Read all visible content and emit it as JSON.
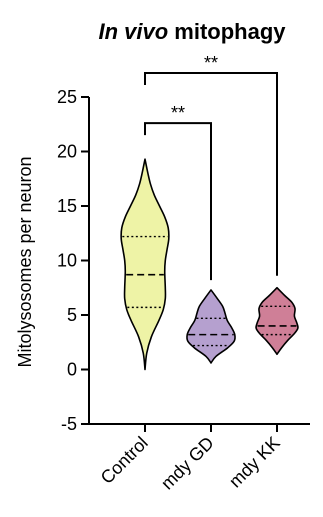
{
  "chart_data": {
    "type": "violin",
    "title_italic": "In vivo",
    "title_rest": " mitophagy",
    "ylabel": "Mitolysosomes per neuron",
    "xlabel": "",
    "ylim": [
      -5,
      25
    ],
    "yticks": [
      -5,
      0,
      5,
      10,
      15,
      20,
      25
    ],
    "categories": [
      "Control",
      "mdy GD",
      "mdy KK"
    ],
    "series": [
      {
        "category": "Control",
        "color": "#eef3a6",
        "min": 0,
        "max": 19.3,
        "q1": 5.7,
        "median": 8.7,
        "q3": 12.2,
        "density": [
          [
            0,
            0.0
          ],
          [
            1.5,
            0.06
          ],
          [
            3,
            0.22
          ],
          [
            4.5,
            0.48
          ],
          [
            5.5,
            0.63
          ],
          [
            6.5,
            0.7
          ],
          [
            7.5,
            0.7
          ],
          [
            9,
            0.68
          ],
          [
            10,
            0.7
          ],
          [
            11,
            0.76
          ],
          [
            12,
            0.82
          ],
          [
            13,
            0.8
          ],
          [
            14,
            0.68
          ],
          [
            15,
            0.5
          ],
          [
            16,
            0.32
          ],
          [
            17,
            0.19
          ],
          [
            18,
            0.1
          ],
          [
            19.3,
            0.0
          ]
        ]
      },
      {
        "category": "mdy GD",
        "color": "#b5a0cf",
        "min": 0.6,
        "max": 7.3,
        "q1": 2.2,
        "median": 3.2,
        "q3": 4.7,
        "density": [
          [
            0.6,
            0.0
          ],
          [
            1.2,
            0.17
          ],
          [
            2,
            0.58
          ],
          [
            2.6,
            0.8
          ],
          [
            3.2,
            0.82
          ],
          [
            3.8,
            0.72
          ],
          [
            4.5,
            0.56
          ],
          [
            5.2,
            0.48
          ],
          [
            5.8,
            0.4
          ],
          [
            6.5,
            0.22
          ],
          [
            7.3,
            0.0
          ]
        ]
      },
      {
        "category": "mdy KK",
        "color": "#cf7f97",
        "min": 1.4,
        "max": 7.5,
        "q1": 3.2,
        "median": 4.0,
        "q3": 5.8,
        "density": [
          [
            1.4,
            0.0
          ],
          [
            2,
            0.16
          ],
          [
            2.7,
            0.38
          ],
          [
            3.3,
            0.6
          ],
          [
            3.8,
            0.72
          ],
          [
            4.3,
            0.68
          ],
          [
            4.9,
            0.6
          ],
          [
            5.6,
            0.62
          ],
          [
            6.2,
            0.5
          ],
          [
            6.8,
            0.26
          ],
          [
            7.5,
            0.0
          ]
        ]
      }
    ],
    "significance": [
      {
        "from": "Control",
        "to": "mdy GD",
        "label": "**",
        "y": 22.6
      },
      {
        "from": "Control",
        "to": "mdy KK",
        "label": "**",
        "y": 27.2
      }
    ]
  }
}
